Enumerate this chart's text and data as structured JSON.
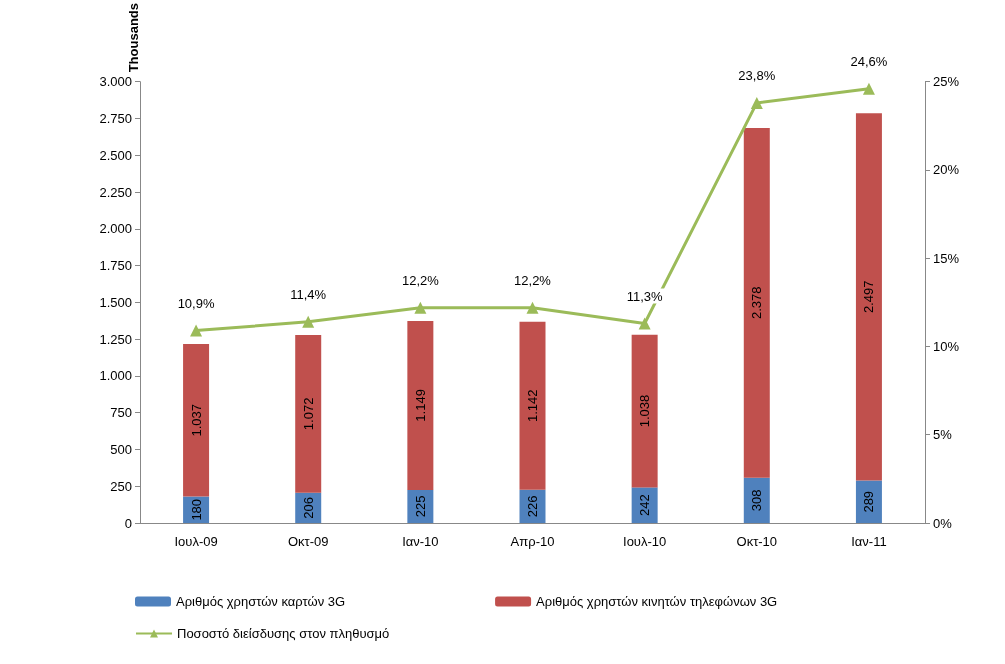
{
  "chart_data": {
    "type": "bar",
    "stacked": true,
    "ylabel": "Thousands",
    "categories": [
      "Ιουλ-09",
      "Οκτ-09",
      "Ιαν-10",
      "Απρ-10",
      "Ιουλ-10",
      "Οκτ-10",
      "Ιαν-11"
    ],
    "series": [
      {
        "name": "Αριθμός χρηστών καρτών 3G",
        "color": "#4f81bd",
        "values": [
          180,
          206,
          225,
          226,
          242,
          308,
          289
        ],
        "value_labels": [
          "180",
          "206",
          "225",
          "226",
          "242",
          "308",
          "289"
        ]
      },
      {
        "name": "Αριθμός χρηστών κινητών τηλεφώνων 3G",
        "color": "#c0504d",
        "values": [
          1037,
          1072,
          1149,
          1142,
          1038,
          2378,
          2497
        ],
        "value_labels": [
          "1.037",
          "1.072",
          "1.149",
          "1.142",
          "1.038",
          "2.378",
          "2.497"
        ]
      },
      {
        "name": "Ποσοστό διείσδυσης στον πληθυσμό",
        "type": "line",
        "axis": "y2",
        "color": "#9bbb59",
        "marker": "triangle",
        "values": [
          10.9,
          11.4,
          12.2,
          12.2,
          11.3,
          23.8,
          24.6
        ],
        "value_labels": [
          "10,9%",
          "11,4%",
          "12,2%",
          "12,2%",
          "11,3%",
          "23,8%",
          "24,6%"
        ]
      }
    ],
    "ylim": [
      0,
      3000
    ],
    "yticks": [
      0,
      250,
      500,
      750,
      {
        "value": 1000,
        "label": "1.000"
      },
      {
        "value": 1250,
        "label": "1.250"
      },
      {
        "value": 1500,
        "label": "1.500"
      },
      {
        "value": 1750,
        "label": "1.750"
      },
      {
        "value": 2000,
        "label": "2.000"
      },
      {
        "value": 2250,
        "label": "2.250"
      },
      {
        "value": 2500,
        "label": "2.500"
      },
      {
        "value": 2750,
        "label": "2.750"
      },
      {
        "value": 3000,
        "label": "3.000"
      }
    ],
    "y2lim": [
      0,
      25
    ],
    "y2ticks": [
      {
        "value": 0,
        "label": "0%"
      },
      {
        "value": 5,
        "label": "5%"
      },
      {
        "value": 10,
        "label": "10%"
      },
      {
        "value": 15,
        "label": "15%"
      },
      {
        "value": 20,
        "label": "20%"
      },
      {
        "value": 25,
        "label": "25%"
      }
    ],
    "legend": "bottom",
    "grid": false
  }
}
